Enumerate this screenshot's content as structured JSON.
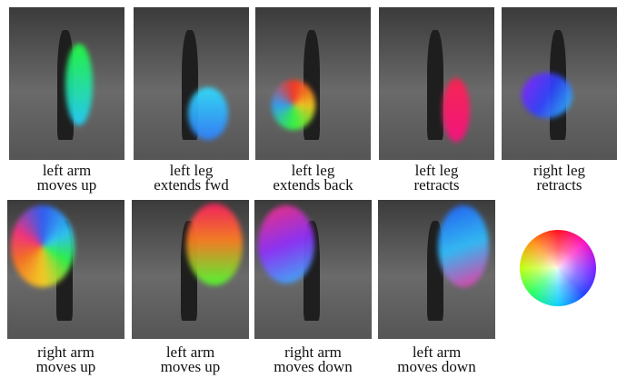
{
  "top_row": [
    [
      "left arm",
      "moves up"
    ],
    [
      "left leg",
      "extends fwd"
    ],
    [
      "left leg",
      "extends back"
    ],
    [
      "left leg",
      "retracts"
    ],
    [
      "right leg",
      "retracts"
    ]
  ],
  "bottom_row": [
    [
      "right arm",
      "moves up"
    ],
    [
      "left arm",
      "moves up"
    ],
    [
      "right arm",
      "moves down"
    ],
    [
      "left arm",
      "moves down"
    ]
  ]
}
